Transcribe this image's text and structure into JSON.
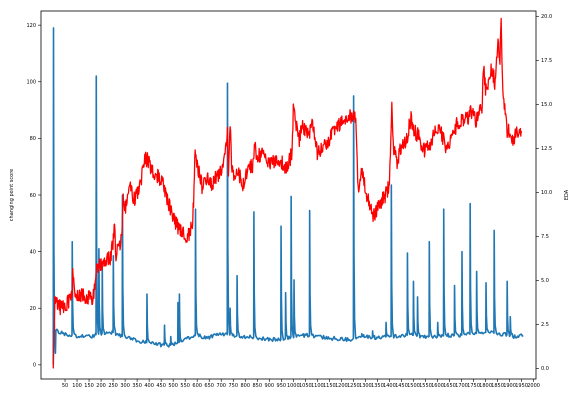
{
  "chart_data": {
    "type": "line",
    "title": "",
    "xlabel": "",
    "ylabel_left": "changing point score",
    "ylabel_right": "EDA",
    "xlim": [
      -50,
      2010
    ],
    "ylim_left": [
      -5,
      125
    ],
    "ylim_right": [
      -0.6,
      20.3
    ],
    "grid": false,
    "x_ticks": [
      50,
      100,
      150,
      200,
      250,
      300,
      350,
      400,
      450,
      500,
      550,
      600,
      650,
      700,
      750,
      800,
      850,
      900,
      950,
      1000,
      1050,
      1100,
      1150,
      1200,
      1250,
      1300,
      1350,
      1400,
      1450,
      1500,
      1550,
      1600,
      1650,
      1700,
      1750,
      1800,
      1850,
      1900,
      1950,
      2000
    ],
    "x_tick_labels": [
      "50",
      "100",
      "150",
      "200",
      "250",
      "300",
      "350",
      "400",
      "450",
      "500",
      "550",
      "600",
      "650",
      "700",
      "750",
      "800",
      "850",
      "900",
      "950",
      "1000",
      "1050",
      "1100",
      "1150",
      "1200",
      "1250",
      "1300",
      "1350",
      "1400",
      "1450",
      "1500",
      "1550",
      "1600",
      "1650",
      "1700",
      "1750",
      "1800",
      "1850",
      "1900",
      "1950",
      "2000"
    ],
    "y_ticks_left": [
      0,
      20,
      40,
      60,
      80,
      100,
      120
    ],
    "y_tick_labels_left": [
      "0",
      "20",
      "40",
      "60",
      "80",
      "100",
      "120"
    ],
    "y_ticks_right": [
      0,
      2.5,
      5,
      7.5,
      10,
      12.5,
      15,
      17.5,
      20
    ],
    "y_tick_labels_right": [
      "0.0",
      "2.5",
      "5.0",
      "7.5",
      "10.0",
      "12.5",
      "15.0",
      "17.5",
      "20.0"
    ],
    "series": [
      {
        "axis": "left",
        "color": "#1f77b4",
        "baseline": [
          [
            1,
            0
          ],
          [
            5,
            14
          ],
          [
            15,
            12
          ],
          [
            40,
            11
          ],
          [
            80,
            10.5
          ],
          [
            120,
            10
          ],
          [
            160,
            10
          ],
          [
            170,
            10.5
          ],
          [
            200,
            11
          ],
          [
            250,
            11.5
          ],
          [
            290,
            10
          ],
          [
            330,
            9
          ],
          [
            350,
            8.5
          ],
          [
            380,
            8
          ],
          [
            420,
            7.5
          ],
          [
            450,
            7
          ],
          [
            500,
            7
          ],
          [
            540,
            8.5
          ],
          [
            580,
            10
          ],
          [
            600,
            10.5
          ],
          [
            640,
            9.5
          ],
          [
            680,
            10.5
          ],
          [
            700,
            11
          ],
          [
            740,
            10.5
          ],
          [
            800,
            10
          ],
          [
            850,
            9.5
          ],
          [
            900,
            9
          ],
          [
            950,
            9
          ],
          [
            980,
            9.5
          ],
          [
            1000,
            10
          ],
          [
            1050,
            10.5
          ],
          [
            1100,
            10
          ],
          [
            1150,
            9.5
          ],
          [
            1200,
            9
          ],
          [
            1240,
            9
          ],
          [
            1270,
            10
          ],
          [
            1300,
            10
          ],
          [
            1350,
            9.5
          ],
          [
            1400,
            10
          ],
          [
            1450,
            10.5
          ],
          [
            1500,
            10.5
          ],
          [
            1550,
            10
          ],
          [
            1600,
            10
          ],
          [
            1650,
            10.5
          ],
          [
            1700,
            10.5
          ],
          [
            1750,
            11
          ],
          [
            1800,
            11.5
          ],
          [
            1850,
            11
          ],
          [
            1900,
            10.5
          ],
          [
            1920,
            10
          ],
          [
            1940,
            10
          ],
          [
            1957,
            10.5
          ]
        ],
        "spikes": [
          [
            2,
            119
          ],
          [
            80,
            43.5
          ],
          [
            180,
            102
          ],
          [
            191,
            41
          ],
          [
            205,
            35
          ],
          [
            251,
            38.5
          ],
          [
            289,
            60
          ],
          [
            391,
            25
          ],
          [
            464,
            14
          ],
          [
            490,
            10
          ],
          [
            520,
            22
          ],
          [
            526,
            25
          ],
          [
            593,
            55
          ],
          [
            726,
            99.5
          ],
          [
            737,
            20
          ],
          [
            766,
            31.5
          ],
          [
            836,
            54
          ],
          [
            949,
            49
          ],
          [
            968,
            25.5
          ],
          [
            991,
            59.5
          ],
          [
            1003,
            30
          ],
          [
            1068,
            54.5
          ],
          [
            1251,
            95
          ],
          [
            1285,
            11
          ],
          [
            1330,
            12
          ],
          [
            1386,
            15
          ],
          [
            1408,
            63.5
          ],
          [
            1475,
            39.5
          ],
          [
            1500,
            29.5
          ],
          [
            1517,
            24
          ],
          [
            1566,
            43.5
          ],
          [
            1601,
            15
          ],
          [
            1626,
            55
          ],
          [
            1671,
            28
          ],
          [
            1702,
            40
          ],
          [
            1736,
            57
          ],
          [
            1763,
            33
          ],
          [
            1802,
            29
          ],
          [
            1836,
            47.5
          ],
          [
            1890,
            29.5
          ],
          [
            1903,
            17
          ]
        ]
      },
      {
        "axis": "right",
        "color": "#ff0000",
        "points": [
          [
            1,
            0
          ],
          [
            8,
            4.2
          ],
          [
            15,
            3.8
          ],
          [
            30,
            3.4
          ],
          [
            50,
            3.6
          ],
          [
            65,
            3.8
          ],
          [
            80,
            4.5
          ],
          [
            82,
            5.3
          ],
          [
            90,
            4.2
          ],
          [
            100,
            4.3
          ],
          [
            120,
            4.2
          ],
          [
            150,
            4.0
          ],
          [
            170,
            4.1
          ],
          [
            180,
            5.8
          ],
          [
            190,
            5.7
          ],
          [
            200,
            5.9
          ],
          [
            220,
            6.0
          ],
          [
            240,
            6.3
          ],
          [
            251,
            7.3
          ],
          [
            256,
            8.0
          ],
          [
            262,
            6.5
          ],
          [
            275,
            6.9
          ],
          [
            285,
            7.4
          ],
          [
            292,
            9.8
          ],
          [
            300,
            9.1
          ],
          [
            320,
            10.3
          ],
          [
            340,
            9.6
          ],
          [
            360,
            10.2
          ],
          [
            380,
            11.8
          ],
          [
            391,
            11.9
          ],
          [
            400,
            11.6
          ],
          [
            420,
            11.1
          ],
          [
            440,
            10.8
          ],
          [
            460,
            10.4
          ],
          [
            480,
            9.4
          ],
          [
            500,
            8.6
          ],
          [
            520,
            8.0
          ],
          [
            540,
            7.6
          ],
          [
            560,
            7.5
          ],
          [
            570,
            7.7
          ],
          [
            580,
            8.2
          ],
          [
            585,
            9.5
          ],
          [
            590,
            11.8
          ],
          [
            593,
            12.3
          ],
          [
            600,
            11.6
          ],
          [
            620,
            10.3
          ],
          [
            640,
            10.9
          ],
          [
            660,
            10.5
          ],
          [
            680,
            10.8
          ],
          [
            700,
            11.2
          ],
          [
            710,
            11.9
          ],
          [
            718,
            12.5
          ],
          [
            726,
            13.5
          ],
          [
            730,
            11.1
          ],
          [
            737,
            13.7
          ],
          [
            745,
            11.2
          ],
          [
            760,
            10.9
          ],
          [
            775,
            11.0
          ],
          [
            790,
            10.5
          ],
          [
            800,
            10.8
          ],
          [
            815,
            11.4
          ],
          [
            830,
            11.5
          ],
          [
            840,
            12.8
          ],
          [
            850,
            12.0
          ],
          [
            870,
            12.2
          ],
          [
            890,
            11.8
          ],
          [
            910,
            11.7
          ],
          [
            930,
            11.8
          ],
          [
            950,
            11.7
          ],
          [
            965,
            11.5
          ],
          [
            980,
            11.6
          ],
          [
            995,
            12.3
          ],
          [
            1000,
            14.8
          ],
          [
            1010,
            13.9
          ],
          [
            1025,
            13.0
          ],
          [
            1035,
            14.0
          ],
          [
            1048,
            13.6
          ],
          [
            1068,
            13.5
          ],
          [
            1080,
            14.1
          ],
          [
            1100,
            12.2
          ],
          [
            1120,
            12.5
          ],
          [
            1140,
            12.8
          ],
          [
            1160,
            13.3
          ],
          [
            1180,
            13.8
          ],
          [
            1200,
            14.0
          ],
          [
            1220,
            14.2
          ],
          [
            1240,
            14.3
          ],
          [
            1256,
            14.4
          ],
          [
            1260,
            13.8
          ],
          [
            1270,
            10.2
          ],
          [
            1285,
            11.3
          ],
          [
            1300,
            10.2
          ],
          [
            1320,
            9.0
          ],
          [
            1340,
            8.6
          ],
          [
            1350,
            9.2
          ],
          [
            1370,
            9.6
          ],
          [
            1390,
            10.0
          ],
          [
            1400,
            10.5
          ],
          [
            1410,
            15.0
          ],
          [
            1418,
            12.5
          ],
          [
            1430,
            11.7
          ],
          [
            1450,
            12.6
          ],
          [
            1470,
            12.9
          ],
          [
            1490,
            14.3
          ],
          [
            1500,
            13.6
          ],
          [
            1520,
            13.2
          ],
          [
            1540,
            12.3
          ],
          [
            1560,
            12.6
          ],
          [
            1580,
            13.1
          ],
          [
            1600,
            13.6
          ],
          [
            1620,
            13.2
          ],
          [
            1640,
            12.3
          ],
          [
            1660,
            13.4
          ],
          [
            1680,
            13.8
          ],
          [
            1700,
            14.2
          ],
          [
            1720,
            14.1
          ],
          [
            1740,
            14.6
          ],
          [
            1760,
            14.0
          ],
          [
            1775,
            14.6
          ],
          [
            1785,
            14.9
          ],
          [
            1792,
            17.2
          ],
          [
            1800,
            15.8
          ],
          [
            1810,
            16.2
          ],
          [
            1825,
            17.0
          ],
          [
            1840,
            16.2
          ],
          [
            1852,
            18.3
          ],
          [
            1860,
            17.6
          ],
          [
            1865,
            19.5
          ],
          [
            1870,
            16.5
          ],
          [
            1880,
            14.6
          ],
          [
            1890,
            13.5
          ],
          [
            1900,
            13.4
          ],
          [
            1910,
            12.9
          ],
          [
            1920,
            13.1
          ],
          [
            1935,
            13.5
          ],
          [
            1945,
            13.2
          ],
          [
            1950,
            13.4
          ]
        ]
      }
    ]
  }
}
